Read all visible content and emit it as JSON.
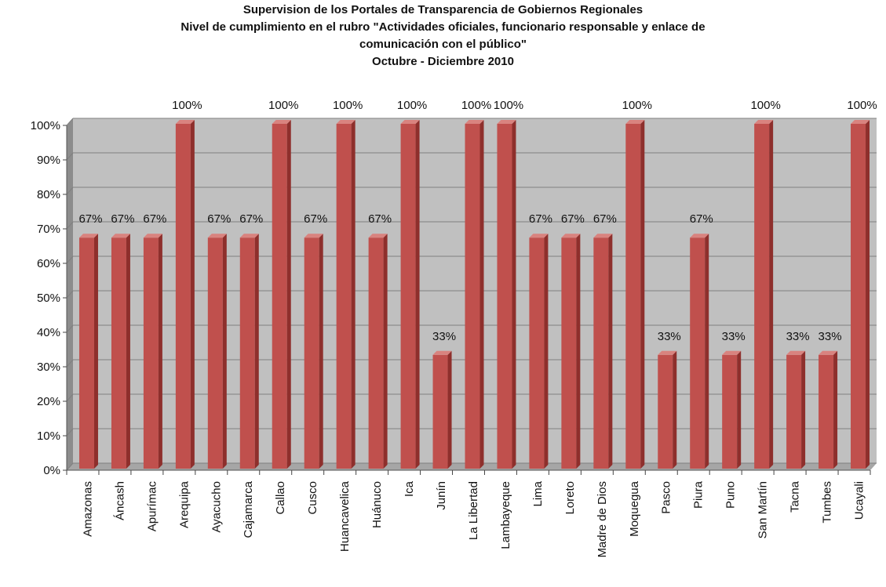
{
  "chart_data": {
    "type": "bar",
    "title": [
      "Supervision de los Portales de Transparencia  de Gobiernos Regionales",
      "Nivel de cumplimiento en el rubro \"Actividades oficiales,  funcionario  responsable  y enlace de",
      "comunicación  con el público\"",
      "Octubre - Diciembre  2010"
    ],
    "categories": [
      "Amazonas",
      "Áncash",
      "Apurímac",
      "Arequipa",
      "Ayacucho",
      "Cajamarca",
      "Callao",
      "Cusco",
      "Huancavelica",
      "Huánuco",
      "Ica",
      "Junín",
      "La Libertad",
      "Lambayeque",
      "Lima",
      "Loreto",
      "Madre de Dios",
      "Moquegua",
      "Pasco",
      "Piura",
      "Puno",
      "San Martín",
      "Tacna",
      "Tumbes",
      "Ucayali"
    ],
    "values": [
      67,
      67,
      67,
      100,
      67,
      67,
      100,
      67,
      100,
      67,
      100,
      33,
      100,
      100,
      67,
      67,
      67,
      100,
      33,
      67,
      33,
      100,
      33,
      33,
      100
    ],
    "data_labels": [
      "67%",
      "67%",
      "67%",
      "100%",
      "67%",
      "67%",
      "100%",
      "67%",
      "100%",
      "67%",
      "100%",
      "33%",
      "100%",
      "100%",
      "67%",
      "67%",
      "67%",
      "100%",
      "33%",
      "67%",
      "33%",
      "100%",
      "33%",
      "33%",
      "100%"
    ],
    "yticks": [
      "0%",
      "10%",
      "20%",
      "30%",
      "40%",
      "50%",
      "60%",
      "70%",
      "80%",
      "90%",
      "100%"
    ],
    "ylim": [
      0,
      100
    ],
    "grid": true,
    "legend": "none",
    "colors": {
      "bar": "#c0504d",
      "bar_side": "#8e2f2c",
      "bar_top": "#d9837f",
      "plot_bg": "#c0c0c0",
      "wall_side": "#8c8c8c",
      "floor": "#a6a6a6",
      "grid": "#7f7f7f"
    }
  }
}
